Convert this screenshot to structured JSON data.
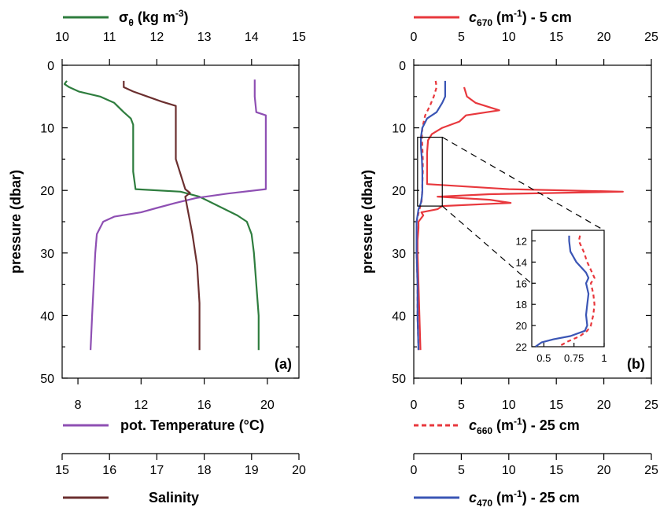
{
  "chart_data": [
    {
      "panel": "a",
      "type": "line",
      "panel_label": "(a)",
      "ylabel": "pressure (dbar)",
      "ylim": [
        50,
        0
      ],
      "y_ticks": [
        "0",
        "10",
        "20",
        "30",
        "40",
        "50"
      ],
      "grid": false,
      "axes": {
        "sigma": {
          "label": "σθ (kg m-3)",
          "position": "top",
          "range": [
            10,
            15
          ],
          "ticks": [
            "10",
            "11",
            "12",
            "13",
            "14",
            "15"
          ]
        },
        "temp": {
          "label": "pot. Temperature (°C)",
          "position": "bottom",
          "range": [
            7,
            22
          ],
          "ticks": [
            "8",
            "12",
            "16",
            "20"
          ]
        },
        "sal": {
          "label": "Salinity",
          "position": "bottom-second",
          "range": [
            15,
            20
          ],
          "ticks": [
            "15",
            "16",
            "17",
            "18",
            "19",
            "20"
          ]
        }
      },
      "series": [
        {
          "name": "σθ",
          "axis": "sigma",
          "color": "#2e7d3e",
          "y": [
            2.5,
            3,
            3.5,
            4.2,
            5,
            6,
            7.5,
            8.5,
            9.5,
            11,
            14,
            17,
            19.8,
            20.2,
            21,
            22.5,
            24,
            25,
            27,
            30,
            35,
            40,
            45.5
          ],
          "x": [
            10.1,
            10.05,
            10.15,
            10.35,
            10.8,
            11.1,
            11.3,
            11.45,
            11.5,
            11.5,
            11.5,
            11.5,
            11.55,
            12.5,
            12.9,
            13.3,
            13.7,
            13.9,
            14.0,
            14.05,
            14.1,
            14.15,
            14.15
          ]
        },
        {
          "name": "pot. Temperature",
          "axis": "temp",
          "color": "#8e4fb3",
          "y": [
            2.3,
            5,
            7.5,
            8,
            12,
            16,
            19.8,
            20.5,
            21.2,
            22,
            22.8,
            23.5,
            24.2,
            25,
            27,
            30,
            35,
            40,
            45.5
          ],
          "x": [
            19.2,
            19.2,
            19.3,
            19.9,
            19.9,
            19.9,
            19.9,
            17.5,
            15.5,
            14.2,
            13,
            12,
            10.3,
            9.6,
            9.2,
            9.1,
            9.0,
            8.9,
            8.8
          ]
        },
        {
          "name": "Salinity",
          "axis": "sal",
          "color": "#6b2f2f",
          "y": [
            2.5,
            3.5,
            4.2,
            5,
            5.8,
            6.5,
            7.5,
            10,
            15,
            19.8,
            20.4,
            21,
            23,
            27,
            32,
            38,
            45.5
          ],
          "x": [
            16.3,
            16.3,
            16.5,
            16.8,
            17.1,
            17.4,
            17.4,
            17.4,
            17.4,
            17.6,
            17.7,
            17.6,
            17.65,
            17.75,
            17.85,
            17.9,
            17.9
          ]
        }
      ]
    },
    {
      "panel": "b",
      "type": "line",
      "panel_label": "(b)",
      "ylabel": "pressure (dbar)",
      "ylim": [
        50,
        0
      ],
      "y_ticks": [
        "0",
        "10",
        "20",
        "30",
        "40",
        "50"
      ],
      "grid": false,
      "axes": {
        "top": {
          "range": [
            0,
            25
          ],
          "ticks": [
            "0",
            "5",
            "10",
            "15",
            "20",
            "25"
          ]
        },
        "bottom": {
          "range": [
            0,
            25
          ],
          "ticks": [
            "0",
            "5",
            "10",
            "15",
            "20",
            "25"
          ]
        },
        "bottom2": {
          "range": [
            0,
            25
          ],
          "ticks": [
            "0",
            "5",
            "10",
            "15",
            "20",
            "25"
          ]
        }
      },
      "series": [
        {
          "name": "c670 (m-1) - 5 cm",
          "label_main": "c",
          "label_sub": "670",
          "label_rest": " (m",
          "label_sup": "-1",
          "label_tail": ") - 5 cm",
          "color": "#e8383d",
          "dash": "solid",
          "y": [
            3.5,
            5,
            6,
            7.2,
            8,
            9,
            10,
            11,
            12,
            14,
            17,
            19,
            19.8,
            20.2,
            20.6,
            21,
            21.5,
            22,
            22.5,
            23,
            23.5,
            24,
            25,
            26,
            28,
            30,
            35,
            40,
            45.5
          ],
          "x": [
            5.3,
            5.6,
            6.5,
            9.0,
            5.5,
            4.8,
            3.0,
            1.9,
            1.5,
            1.4,
            1.4,
            1.4,
            10,
            22,
            8,
            2.5,
            8,
            10.2,
            3,
            2.5,
            0.8,
            1,
            0.5,
            0.5,
            0.4,
            0.4,
            0.5,
            0.6,
            0.7
          ]
        },
        {
          "name": "c660 (m-1) - 25 cm",
          "label_main": "c",
          "label_sub": "660",
          "label_rest": " (m",
          "label_sup": "-1",
          "label_tail": ") - 25 cm",
          "color": "#e8383d",
          "dash": "5,4",
          "y": [
            2.5,
            3.5,
            5,
            6.5,
            8,
            10,
            11.5,
            13,
            15,
            17,
            19,
            20,
            21,
            22,
            23,
            25,
            30,
            35,
            40,
            45.5
          ],
          "x": [
            2.3,
            2.4,
            2.1,
            1.7,
            1.2,
            0.9,
            0.85,
            0.9,
            0.95,
            0.95,
            0.9,
            0.9,
            0.85,
            0.8,
            0.6,
            0.3,
            0.3,
            0.4,
            0.4,
            0.5
          ]
        },
        {
          "name": "c470 (m-1) - 25 cm",
          "label_main": "c",
          "label_sub": "470",
          "label_rest": " (m",
          "label_sup": "-1",
          "label_tail": ") - 25 cm",
          "color": "#3a55b5",
          "dash": "solid",
          "y": [
            2.5,
            3.5,
            5,
            6,
            7.5,
            8.5,
            10,
            11.5,
            13,
            15,
            17,
            19,
            20,
            21,
            22,
            23,
            25,
            30,
            35,
            40,
            45.5
          ],
          "x": [
            3.3,
            3.3,
            3.3,
            3.0,
            2.4,
            1.4,
            0.9,
            0.75,
            0.75,
            0.85,
            0.9,
            0.9,
            0.9,
            0.85,
            0.75,
            0.5,
            0.3,
            0.3,
            0.4,
            0.4,
            0.5
          ]
        }
      ],
      "zoom_box": {
        "x_range": [
          0.4,
          3.0
        ],
        "y_range": [
          11.5,
          22.5
        ]
      },
      "inset": {
        "x_range": [
          0.4,
          1.0
        ],
        "y_range": [
          22,
          11
        ],
        "x_ticks": [
          "0.5",
          "0.75",
          "1"
        ],
        "y_ticks": [
          "12",
          "14",
          "16",
          "18",
          "20",
          "22"
        ],
        "series": [
          {
            "name": "c660",
            "color": "#e8383d",
            "dash": "5,4",
            "y": [
              11.5,
              12,
              13,
              14,
              15,
              15.5,
              16,
              17,
              18,
              19,
              20,
              20.5,
              21,
              21.5,
              22
            ],
            "x": [
              0.8,
              0.79,
              0.83,
              0.86,
              0.9,
              0.92,
              0.89,
              0.91,
              0.92,
              0.91,
              0.89,
              0.86,
              0.8,
              0.7,
              0.62
            ]
          },
          {
            "name": "c470",
            "color": "#3a55b5",
            "dash": "solid",
            "y": [
              11.5,
              12,
              13,
              14,
              15,
              15.5,
              16,
              17,
              18,
              19,
              20,
              20.5,
              21,
              21.3,
              21.6,
              22
            ],
            "x": [
              0.71,
              0.71,
              0.72,
              0.77,
              0.85,
              0.87,
              0.85,
              0.87,
              0.86,
              0.85,
              0.86,
              0.84,
              0.72,
              0.58,
              0.48,
              0.43
            ]
          }
        ]
      }
    }
  ]
}
